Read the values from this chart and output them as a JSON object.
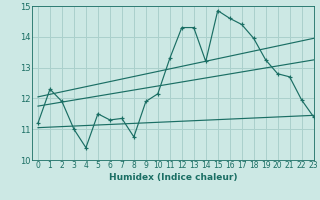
{
  "title": "",
  "xlabel": "Humidex (Indice chaleur)",
  "xlim": [
    -0.5,
    23
  ],
  "ylim": [
    10,
    15
  ],
  "x_ticks": [
    0,
    1,
    2,
    3,
    4,
    5,
    6,
    7,
    8,
    9,
    10,
    11,
    12,
    13,
    14,
    15,
    16,
    17,
    18,
    19,
    20,
    21,
    22,
    23
  ],
  "y_ticks": [
    10,
    11,
    12,
    13,
    14,
    15
  ],
  "bg_color": "#cce8e4",
  "grid_color": "#aad0cc",
  "line_color": "#1a6e64",
  "main_x": [
    0,
    1,
    2,
    3,
    4,
    5,
    6,
    7,
    8,
    9,
    10,
    11,
    12,
    13,
    14,
    15,
    16,
    17,
    18,
    19,
    20,
    21,
    22,
    23
  ],
  "main_y": [
    11.2,
    12.3,
    11.9,
    11.0,
    10.4,
    11.5,
    11.3,
    11.35,
    10.75,
    11.9,
    12.15,
    13.3,
    14.3,
    14.3,
    13.2,
    14.85,
    14.6,
    14.4,
    13.95,
    13.25,
    12.8,
    12.7,
    11.95,
    11.4
  ],
  "trend1_x": [
    0,
    23
  ],
  "trend1_y": [
    12.05,
    13.95
  ],
  "trend2_x": [
    0,
    23
  ],
  "trend2_y": [
    11.75,
    13.25
  ],
  "trend3_x": [
    0,
    23
  ],
  "trend3_y": [
    11.05,
    11.45
  ]
}
